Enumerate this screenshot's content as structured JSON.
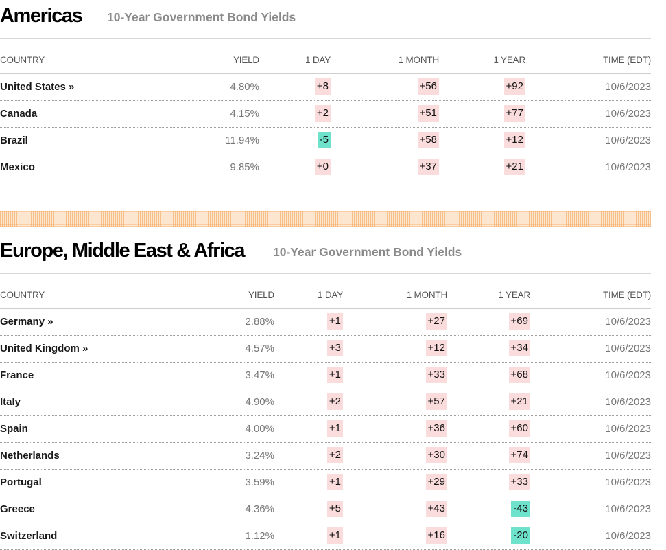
{
  "americas": {
    "title": "Americas",
    "subtitle": "10-Year Government Bond Yields",
    "headers": {
      "country": "COUNTRY",
      "yield": "YIELD",
      "day": "1 DAY",
      "month": "1 MONTH",
      "year": "1 YEAR",
      "time": "TIME (EDT)"
    },
    "rows": [
      {
        "country": "United States »",
        "yield": "4.80%",
        "day": "+8",
        "day_dir": "up",
        "month": "+56",
        "month_dir": "up",
        "year": "+92",
        "year_dir": "up",
        "time": "10/6/2023"
      },
      {
        "country": "Canada",
        "yield": "4.15%",
        "day": "+2",
        "day_dir": "up",
        "month": "+51",
        "month_dir": "up",
        "year": "+77",
        "year_dir": "up",
        "time": "10/6/2023"
      },
      {
        "country": "Brazil",
        "yield": "11.94%",
        "day": "-5",
        "day_dir": "down",
        "month": "+58",
        "month_dir": "up",
        "year": "+12",
        "year_dir": "up",
        "time": "10/6/2023"
      },
      {
        "country": "Mexico",
        "yield": "9.85%",
        "day": "+0",
        "day_dir": "up",
        "month": "+37",
        "month_dir": "up",
        "year": "+21",
        "year_dir": "up",
        "time": "10/6/2023"
      }
    ]
  },
  "emea": {
    "title": "Europe, Middle East & Africa",
    "subtitle": "10-Year Government Bond Yields",
    "headers": {
      "country": "COUNTRY",
      "yield": "YIELD",
      "day": "1 DAY",
      "month": "1 MONTH",
      "year": "1 YEAR",
      "time": "TIME (EDT)"
    },
    "rows": [
      {
        "country": "Germany »",
        "yield": "2.88%",
        "day": "+1",
        "day_dir": "up",
        "month": "+27",
        "month_dir": "up",
        "year": "+69",
        "year_dir": "up",
        "time": "10/6/2023"
      },
      {
        "country": "United Kingdom »",
        "yield": "4.57%",
        "day": "+3",
        "day_dir": "up",
        "month": "+12",
        "month_dir": "up",
        "year": "+34",
        "year_dir": "up",
        "time": "10/6/2023"
      },
      {
        "country": "France",
        "yield": "3.47%",
        "day": "+1",
        "day_dir": "up",
        "month": "+33",
        "month_dir": "up",
        "year": "+68",
        "year_dir": "up",
        "time": "10/6/2023"
      },
      {
        "country": "Italy",
        "yield": "4.90%",
        "day": "+2",
        "day_dir": "up",
        "month": "+57",
        "month_dir": "up",
        "year": "+21",
        "year_dir": "up",
        "time": "10/6/2023"
      },
      {
        "country": "Spain",
        "yield": "4.00%",
        "day": "+1",
        "day_dir": "up",
        "month": "+36",
        "month_dir": "up",
        "year": "+60",
        "year_dir": "up",
        "time": "10/6/2023"
      },
      {
        "country": "Netherlands",
        "yield": "3.24%",
        "day": "+2",
        "day_dir": "up",
        "month": "+30",
        "month_dir": "up",
        "year": "+74",
        "year_dir": "up",
        "time": "10/6/2023"
      },
      {
        "country": "Portugal",
        "yield": "3.59%",
        "day": "+1",
        "day_dir": "up",
        "month": "+29",
        "month_dir": "up",
        "year": "+33",
        "year_dir": "up",
        "time": "10/6/2023"
      },
      {
        "country": "Greece",
        "yield": "4.36%",
        "day": "+5",
        "day_dir": "up",
        "month": "+43",
        "month_dir": "up",
        "year": "-43",
        "year_dir": "down",
        "time": "10/6/2023"
      },
      {
        "country": "Switzerland",
        "yield": "1.12%",
        "day": "+1",
        "day_dir": "up",
        "month": "+16",
        "month_dir": "up",
        "year": "-20",
        "year_dir": "down",
        "time": "10/6/2023"
      }
    ]
  },
  "colors": {
    "up_bg": "#fbdcdc",
    "down_bg": "#6fe2cc",
    "divider": "#f4a050"
  }
}
